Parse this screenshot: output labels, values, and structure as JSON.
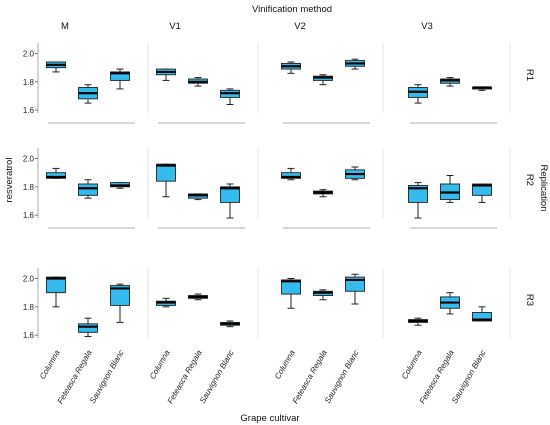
{
  "chart_data": {
    "type": "boxplot",
    "title": "Vinification method",
    "xlabel": "Grape cultivar",
    "ylabel": "resveratrol",
    "right_label": "Replication",
    "columns": [
      "M",
      "V1",
      "V2",
      "V3"
    ],
    "rows": [
      "R1",
      "R2",
      "R3"
    ],
    "categories": [
      "Columna",
      "Feteasca Regala",
      "Sauvignon Blanc"
    ],
    "y_ticks": [
      "1.6",
      "1.8",
      "2.0"
    ],
    "ylim": [
      1.58,
      2.06
    ],
    "box_color": "#33bbee",
    "panels": [
      {
        "row": "R1",
        "column": "M",
        "boxes": [
          {
            "category": "Columna",
            "min": 1.87,
            "q1": 1.9,
            "median": 1.92,
            "q3": 1.94,
            "max": 1.94
          },
          {
            "category": "Feteasca Regala",
            "min": 1.65,
            "q1": 1.68,
            "median": 1.72,
            "q3": 1.76,
            "max": 1.78
          },
          {
            "category": "Sauvignon Blanc",
            "min": 1.75,
            "q1": 1.81,
            "median": 1.86,
            "q3": 1.87,
            "max": 1.89
          }
        ]
      },
      {
        "row": "R1",
        "column": "V1",
        "boxes": [
          {
            "category": "Columna",
            "min": 1.81,
            "q1": 1.85,
            "median": 1.87,
            "q3": 1.89,
            "max": 1.89
          },
          {
            "category": "Feteasca Regala",
            "min": 1.77,
            "q1": 1.79,
            "median": 1.8,
            "q3": 1.82,
            "max": 1.83
          },
          {
            "category": "Sauvignon Blanc",
            "min": 1.64,
            "q1": 1.69,
            "median": 1.72,
            "q3": 1.74,
            "max": 1.75
          }
        ]
      },
      {
        "row": "R1",
        "column": "V2",
        "boxes": [
          {
            "category": "Columna",
            "min": 1.86,
            "q1": 1.89,
            "median": 1.91,
            "q3": 1.93,
            "max": 1.94
          },
          {
            "category": "Feteasca Regala",
            "min": 1.78,
            "q1": 1.81,
            "median": 1.83,
            "q3": 1.84,
            "max": 1.85
          },
          {
            "category": "Sauvignon Blanc",
            "min": 1.89,
            "q1": 1.91,
            "median": 1.93,
            "q3": 1.95,
            "max": 1.96
          }
        ]
      },
      {
        "row": "R1",
        "column": "V3",
        "boxes": [
          {
            "category": "Columna",
            "min": 1.65,
            "q1": 1.69,
            "median": 1.73,
            "q3": 1.76,
            "max": 1.78
          },
          {
            "category": "Feteasca Regala",
            "min": 1.77,
            "q1": 1.79,
            "median": 1.81,
            "q3": 1.82,
            "max": 1.83
          },
          {
            "category": "Sauvignon Blanc",
            "min": 1.74,
            "q1": 1.75,
            "median": 1.76,
            "q3": 1.76,
            "max": 1.76
          }
        ]
      },
      {
        "row": "R2",
        "column": "M",
        "boxes": [
          {
            "category": "Columna",
            "min": 1.86,
            "q1": 1.86,
            "median": 1.87,
            "q3": 1.9,
            "max": 1.93
          },
          {
            "category": "Feteasca Regala",
            "min": 1.72,
            "q1": 1.74,
            "median": 1.79,
            "q3": 1.82,
            "max": 1.85
          },
          {
            "category": "Sauvignon Blanc",
            "min": 1.79,
            "q1": 1.8,
            "median": 1.81,
            "q3": 1.83,
            "max": 1.83
          }
        ]
      },
      {
        "row": "R2",
        "column": "V1",
        "boxes": [
          {
            "category": "Columna",
            "min": 1.73,
            "q1": 1.84,
            "median": 1.95,
            "q3": 1.96,
            "max": 1.96
          },
          {
            "category": "Feteasca Regala",
            "min": 1.71,
            "q1": 1.72,
            "median": 1.74,
            "q3": 1.75,
            "max": 1.75
          },
          {
            "category": "Sauvignon Blanc",
            "min": 1.58,
            "q1": 1.69,
            "median": 1.79,
            "q3": 1.8,
            "max": 1.82
          }
        ]
      },
      {
        "row": "R2",
        "column": "V2",
        "boxes": [
          {
            "category": "Columna",
            "min": 1.85,
            "q1": 1.86,
            "median": 1.87,
            "q3": 1.9,
            "max": 1.93
          },
          {
            "category": "Feteasca Regala",
            "min": 1.73,
            "q1": 1.75,
            "median": 1.76,
            "q3": 1.77,
            "max": 1.78
          },
          {
            "category": "Sauvignon Blanc",
            "min": 1.85,
            "q1": 1.86,
            "median": 1.89,
            "q3": 1.92,
            "max": 1.94
          }
        ]
      },
      {
        "row": "R2",
        "column": "V3",
        "boxes": [
          {
            "category": "Columna",
            "min": 1.58,
            "q1": 1.69,
            "median": 1.79,
            "q3": 1.81,
            "max": 1.83
          },
          {
            "category": "Feteasca Regala",
            "min": 1.69,
            "q1": 1.71,
            "median": 1.76,
            "q3": 1.82,
            "max": 1.88
          },
          {
            "category": "Sauvignon Blanc",
            "min": 1.69,
            "q1": 1.74,
            "median": 1.81,
            "q3": 1.82,
            "max": 1.82
          }
        ]
      },
      {
        "row": "R3",
        "column": "M",
        "boxes": [
          {
            "category": "Columna",
            "min": 1.8,
            "q1": 1.9,
            "median": 2.0,
            "q3": 2.01,
            "max": 2.01
          },
          {
            "category": "Feteasca Regala",
            "min": 1.59,
            "q1": 1.62,
            "median": 1.66,
            "q3": 1.68,
            "max": 1.72
          },
          {
            "category": "Sauvignon Blanc",
            "min": 1.69,
            "q1": 1.81,
            "median": 1.93,
            "q3": 1.95,
            "max": 1.96
          }
        ]
      },
      {
        "row": "R3",
        "column": "V1",
        "boxes": [
          {
            "category": "Columna",
            "min": 1.8,
            "q1": 1.81,
            "median": 1.83,
            "q3": 1.84,
            "max": 1.86
          },
          {
            "category": "Feteasca Regala",
            "min": 1.85,
            "q1": 1.86,
            "median": 1.87,
            "q3": 1.88,
            "max": 1.89
          },
          {
            "category": "Sauvignon Blanc",
            "min": 1.66,
            "q1": 1.67,
            "median": 1.68,
            "q3": 1.69,
            "max": 1.7
          }
        ]
      },
      {
        "row": "R3",
        "column": "V2",
        "boxes": [
          {
            "category": "Columna",
            "min": 1.79,
            "q1": 1.89,
            "median": 1.98,
            "q3": 1.99,
            "max": 2.0
          },
          {
            "category": "Feteasca Regala",
            "min": 1.85,
            "q1": 1.88,
            "median": 1.9,
            "q3": 1.91,
            "max": 1.92
          },
          {
            "category": "Sauvignon Blanc",
            "min": 1.82,
            "q1": 1.91,
            "median": 1.99,
            "q3": 2.01,
            "max": 2.03
          }
        ]
      },
      {
        "row": "R3",
        "column": "V3",
        "boxes": [
          {
            "category": "Columna",
            "min": 1.67,
            "q1": 1.69,
            "median": 1.7,
            "q3": 1.71,
            "max": 1.72
          },
          {
            "category": "Feteasca Regala",
            "min": 1.75,
            "q1": 1.79,
            "median": 1.83,
            "q3": 1.87,
            "max": 1.9
          },
          {
            "category": "Sauvignon Blanc",
            "min": 1.7,
            "q1": 1.7,
            "median": 1.71,
            "q3": 1.76,
            "max": 1.8
          }
        ]
      }
    ]
  }
}
